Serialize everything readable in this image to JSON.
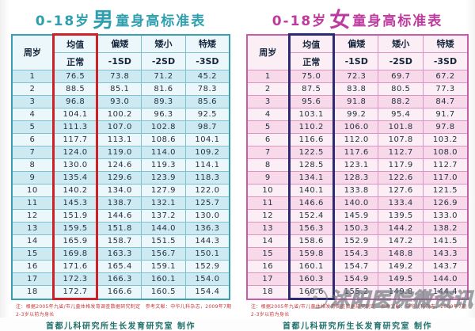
{
  "chart_data": [
    {
      "type": "table",
      "id": "boys",
      "title": {
        "prefix": "0-18岁",
        "gender": "男",
        "suffix": "童身高标准表"
      },
      "columns": {
        "age_label": "周岁",
        "groups": [
          {
            "label": "均值",
            "sd": "正常"
          },
          {
            "label": "偏矮",
            "sd": "-1SD"
          },
          {
            "label": "矮小",
            "sd": "-2SD"
          },
          {
            "label": "特矮",
            "sd": "-3SD"
          }
        ]
      },
      "rows": [
        [
          "1",
          "76.5",
          "73.8",
          "71.2",
          "45.2"
        ],
        [
          "2",
          "88.5",
          "85.1",
          "81.6",
          "78.3"
        ],
        [
          "3",
          "96.8",
          "93.0",
          "89.3",
          "85.6"
        ],
        [
          "4",
          "104.1",
          "100.2",
          "96.3",
          "92.5"
        ],
        [
          "5",
          "111.3",
          "107.0",
          "102.8",
          "98.7"
        ],
        [
          "6",
          "117.7",
          "113.1",
          "108.6",
          "104.1"
        ],
        [
          "7",
          "124.0",
          "119.0",
          "114.0",
          "109.2"
        ],
        [
          "8",
          "130.0",
          "124.6",
          "119.3",
          "114.1"
        ],
        [
          "9",
          "135.4",
          "129.6",
          "123.9",
          "118.3"
        ],
        [
          "10",
          "140.2",
          "134.0",
          "127.9",
          "122.0"
        ],
        [
          "11",
          "145.3",
          "138.7",
          "132.1",
          "125.7"
        ],
        [
          "12",
          "151.9",
          "144.6",
          "137.2",
          "130.0"
        ],
        [
          "13",
          "159.5",
          "151.8",
          "144.0",
          "136.3"
        ],
        [
          "14",
          "165.9",
          "158.7",
          "151.5",
          "144.3"
        ],
        [
          "15",
          "169.8",
          "163.3",
          "156.7",
          "150.1"
        ],
        [
          "16",
          "171.6",
          "165.4",
          "159.1",
          "152.9"
        ],
        [
          "17",
          "172.3",
          "166.3",
          "160.1",
          "154.0"
        ],
        [
          "18",
          "172.7",
          "166.6",
          "160.5",
          "154.4"
        ]
      ],
      "note_line1": "注：根据2005年九省/市儿童体格发育调查数据研究制定　参考文献：中华儿科杂志，2009年7期",
      "note_line2": "2-3岁以前为身长",
      "footer": "首都儿科研究所生长发育研究室  制作",
      "colors": {
        "title": "#2e9fae",
        "accent": "#3a9fb0",
        "line": "#7cc3cf",
        "row_a": "#cdeaf3",
        "row_b": "#ecf7fb",
        "highlight": "#cc2127"
      }
    },
    {
      "type": "table",
      "id": "girls",
      "title": {
        "prefix": "0-18岁",
        "gender": "女",
        "suffix": "童身高标准表"
      },
      "columns": {
        "age_label": "周岁",
        "groups": [
          {
            "label": "均值",
            "sd": "正常"
          },
          {
            "label": "偏矮",
            "sd": "-1SD"
          },
          {
            "label": "矮小",
            "sd": "-2SD"
          },
          {
            "label": "特矮",
            "sd": "-3SD"
          }
        ]
      },
      "rows": [
        [
          "1",
          "75.0",
          "72.3",
          "69.7",
          "67.2"
        ],
        [
          "2",
          "87.5",
          "83.8",
          "80.5",
          "77.3"
        ],
        [
          "3",
          "95.6",
          "91.8",
          "88.2",
          "84.7"
        ],
        [
          "4",
          "103.1",
          "99.2",
          "95.4",
          "91.7"
        ],
        [
          "5",
          "110.2",
          "106.0",
          "101.8",
          "97.8"
        ],
        [
          "6",
          "116.6",
          "112.0",
          "107.8",
          "103.2"
        ],
        [
          "7",
          "122.5",
          "117.6",
          "112.7",
          "108.0"
        ],
        [
          "8",
          "128.5",
          "123.1",
          "117.9",
          "112.7"
        ],
        [
          "9",
          "134.1",
          "128.3",
          "122.6",
          "117.0"
        ],
        [
          "10",
          "140.1",
          "133.8",
          "127.6",
          "121.5"
        ],
        [
          "11",
          "146.6",
          "140.0",
          "133.4",
          "126.9"
        ],
        [
          "12",
          "152.4",
          "145.9",
          "139.5",
          "133.0"
        ],
        [
          "13",
          "156.3",
          "150.3",
          "144.2",
          "138.2"
        ],
        [
          "14",
          "158.6",
          "152.9",
          "147.2",
          "141.5"
        ],
        [
          "15",
          "159.8",
          "154.3",
          "148.8",
          "143.3"
        ],
        [
          "16",
          "160.1",
          "154.7",
          "149.2",
          "143.7"
        ],
        [
          "17",
          "160.3",
          "154.9",
          "149.5",
          "144.0"
        ],
        [
          "18",
          "160.6",
          "155.2",
          "149.8",
          "144.4"
        ]
      ],
      "note_line1": "注：根据2005年九省/市儿童体格发育调查数据研究制定　参考文献：中华儿科杂志，2009年7期",
      "note_line2": "2-3岁以前为身长",
      "footer": "首都儿科研究所生长发育研究室  制作",
      "colors": {
        "title": "#bf3a9f",
        "accent": "#c75ca8",
        "line": "#dd93c4",
        "row_a": "#f8d9e9",
        "row_b": "#fceef5",
        "highlight": "#2c2a74"
      }
    }
  ],
  "watermark": {
    "text": "沭阳医院微资讯"
  }
}
